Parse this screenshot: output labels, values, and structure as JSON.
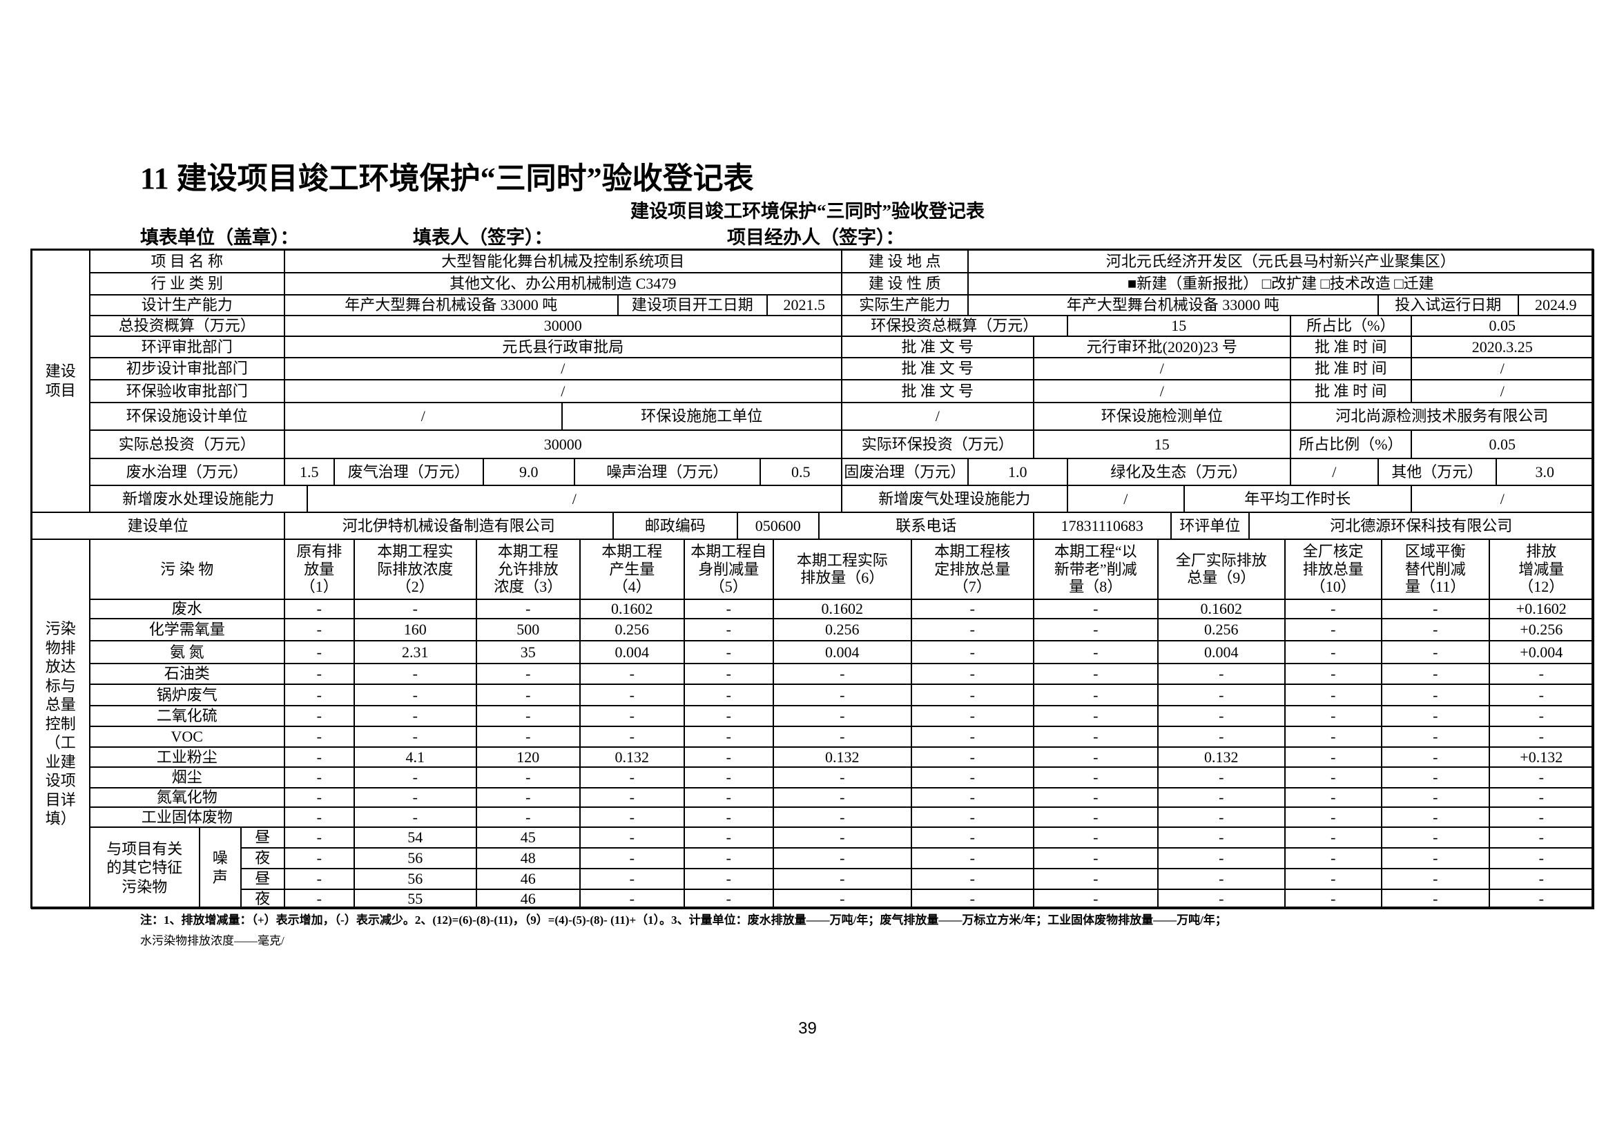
{
  "heading": {
    "title": "11 建设项目竣工环境保护“三同时”验收登记表",
    "subtitle": "建设项目竣工环境保护“三同时”验收登记表",
    "fill_unit": "填表单位（盖章）：",
    "fill_person": "填表人（签字）：",
    "manager": "项目经办人（签字）："
  },
  "project": {
    "section_label": "建设项目",
    "rows": [
      [
        "项 目 名 称",
        "大型智能化舞台机械及控制系统项目",
        "建 设 地 点",
        "河北元氏经济开发区（元氏县马村新兴产业聚集区）"
      ],
      [
        "行 业 类 别",
        "其他文化、办公用机械制造 C3479",
        "建 设 性 质",
        "■新建（重新报批） □改扩建 □技术改造 □迁建"
      ],
      [
        "设计生产能力",
        "年产大型舞台机械设备 33000 吨",
        "建设项目开工日期",
        "2021.5",
        "实际生产能力",
        "年产大型舞台机械设备 33000 吨",
        "投入试运行日期",
        "2024.9"
      ],
      [
        "总投资概算（万元）",
        "30000",
        "环保投资总概算（万元）",
        "15",
        "所占比（%）",
        "0.05"
      ],
      [
        "环评审批部门",
        "元氏县行政审批局",
        "批 准 文 号",
        "元行审环批(2020)23 号",
        "批 准 时 间",
        "2020.3.25"
      ],
      [
        "初步设计审批部门",
        "/",
        "批 准 文 号",
        "/",
        "批 准 时 间",
        "/"
      ],
      [
        "环保验收审批部门",
        "/",
        "批 准 文 号",
        "/",
        "批 准 时 间",
        "/"
      ],
      [
        "环保设施设计单位",
        "/",
        "环保设施施工单位",
        "/",
        "环保设施检测单位",
        "河北尚源检测技术服务有限公司"
      ],
      [
        "实际总投资（万元）",
        "30000",
        "实际环保投资（万元）",
        "15",
        "所占比例（%）",
        "0.05"
      ],
      [
        "废水治理（万元）",
        "1.5",
        "废气治理（万元）",
        "9.0",
        "噪声治理（万元）",
        "0.5",
        "固废治理（万元）",
        "1.0",
        "绿化及生态（万元）",
        "/",
        "其他（万元）",
        "3.0"
      ],
      [
        "新增废水处理设施能力",
        "/",
        "新增废气处理设施能力",
        "/",
        "年平均工作时长",
        "/"
      ],
      [
        "建设单位",
        "河北伊特机械设备制造有限公司",
        "邮政编码",
        "050600",
        "联系电话",
        "17831110683",
        "环评单位",
        "河北德源环保科技有限公司"
      ]
    ]
  },
  "pollutants": {
    "section_label": "污染物排放达标与总量控制（工业建设项目详填）",
    "header": [
      "污 染 物",
      "原有排\n放量\n（1）",
      "本期工程实\n际排放浓度\n（2）",
      "本期工程\n允许排放\n浓度（3）",
      "本期工程\n产生量\n（4）",
      "本期工程自\n身削减量\n（5）",
      "本期工程实际\n排放量（6）",
      "本期工程核\n定排放总量\n（7）",
      "本期工程“以\n新带老”削减\n量（8）",
      "全厂实际排放\n总量（9）",
      "全厂核定\n排放总量\n（10）",
      "区域平衡\n替代削减\n量（11）",
      "排放\n增减量\n（12）"
    ],
    "rows": [
      {
        "name": "废水",
        "values": [
          "-",
          "-",
          "-",
          "0.1602",
          "-",
          "0.1602",
          "-",
          "-",
          "0.1602",
          "-",
          "-",
          "+0.1602"
        ]
      },
      {
        "name": "化学需氧量",
        "values": [
          "-",
          "160",
          "500",
          "0.256",
          "-",
          "0.256",
          "-",
          "-",
          "0.256",
          "-",
          "-",
          "+0.256"
        ]
      },
      {
        "name": "氨 氮",
        "values": [
          "-",
          "2.31",
          "35",
          "0.004",
          "-",
          "0.004",
          "-",
          "-",
          "0.004",
          "-",
          "-",
          "+0.004"
        ]
      },
      {
        "name": "石油类",
        "values": [
          "-",
          "-",
          "-",
          "-",
          "-",
          "-",
          "-",
          "-",
          "-",
          "-",
          "-",
          "-"
        ]
      },
      {
        "name": "锅炉废气",
        "values": [
          "-",
          "-",
          "-",
          "-",
          "-",
          "-",
          "-",
          "-",
          "-",
          "-",
          "-",
          "-"
        ]
      },
      {
        "name": "二氧化硫",
        "values": [
          "-",
          "-",
          "-",
          "-",
          "-",
          "-",
          "-",
          "-",
          "-",
          "-",
          "-",
          "-"
        ]
      },
      {
        "name": "VOC",
        "values": [
          "-",
          "-",
          "-",
          "-",
          "-",
          "-",
          "-",
          "-",
          "-",
          "-",
          "-",
          "-"
        ]
      },
      {
        "name": "工业粉尘",
        "values": [
          "-",
          "4.1",
          "120",
          "0.132",
          "-",
          "0.132",
          "-",
          "-",
          "0.132",
          "-",
          "-",
          "+0.132"
        ]
      },
      {
        "name": "烟尘",
        "values": [
          "-",
          "-",
          "-",
          "-",
          "-",
          "-",
          "-",
          "-",
          "-",
          "-",
          "-",
          "-"
        ]
      },
      {
        "name": "氮氧化物",
        "values": [
          "-",
          "-",
          "-",
          "-",
          "-",
          "-",
          "-",
          "-",
          "-",
          "-",
          "-",
          "-"
        ]
      },
      {
        "name": "工业固体废物",
        "values": [
          "-",
          "-",
          "-",
          "-",
          "-",
          "-",
          "-",
          "-",
          "-",
          "-",
          "-",
          "-"
        ]
      }
    ],
    "other_label": "与项目有关的其它特征污染物",
    "noise_label": "噪声",
    "noise_rows": [
      {
        "period": "昼",
        "values": [
          "-",
          "54",
          "45",
          "-",
          "-",
          "-",
          "-",
          "-",
          "-",
          "-",
          "-",
          "-"
        ]
      },
      {
        "period": "夜",
        "values": [
          "-",
          "56",
          "48",
          "-",
          "-",
          "-",
          "-",
          "-",
          "-",
          "-",
          "-",
          "-"
        ]
      },
      {
        "period": "昼",
        "values": [
          "-",
          "56",
          "46",
          "-",
          "-",
          "-",
          "-",
          "-",
          "-",
          "-",
          "-",
          "-"
        ]
      },
      {
        "period": "夜",
        "values": [
          "-",
          "55",
          "46",
          "-",
          "-",
          "-",
          "-",
          "-",
          "-",
          "-",
          "-",
          "-"
        ]
      }
    ]
  },
  "notes": {
    "line1": "注：1、排放增减量：（+）表示增加，（-）表示减少。2、(12)=(6)-(8)-(11)，（9）=(4)-(5)-(8)- (11)+（1）。3、计量单位：废水排放量——万吨/年；废气排放量——万标立方米/年；工业固体废物排放量——万吨/年；",
    "line2": "水污染物排放浓度——毫克/"
  },
  "page_number": "39"
}
